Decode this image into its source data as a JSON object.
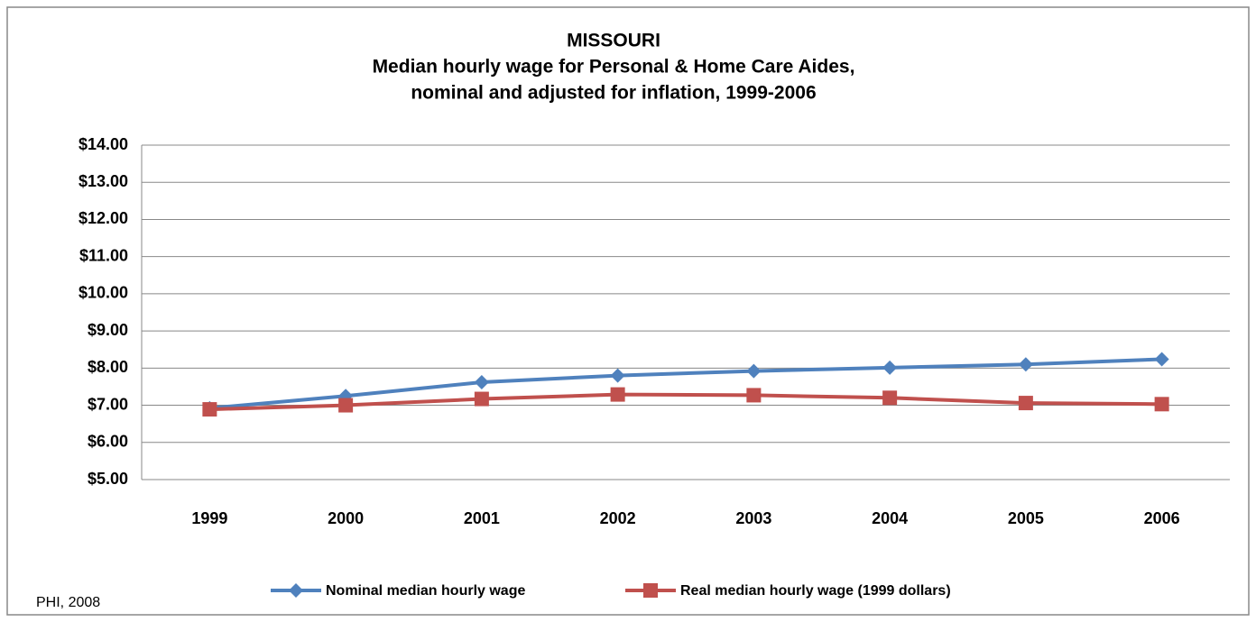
{
  "chart_data": {
    "type": "line",
    "title": [
      "MISSOURI",
      "Median hourly wage for Personal & Home Care Aides,",
      "nominal and adjusted for inflation, 1999-2006"
    ],
    "categories": [
      "1999",
      "2000",
      "2001",
      "2002",
      "2003",
      "2004",
      "2005",
      "2006"
    ],
    "series": [
      {
        "name": "Nominal median hourly wage",
        "color": "#4f81bd",
        "marker": "diamond",
        "values": [
          6.92,
          7.25,
          7.62,
          7.8,
          7.92,
          8.01,
          8.1,
          8.24
        ]
      },
      {
        "name": "Real median hourly wage (1999 dollars)",
        "color": "#c0504d",
        "marker": "square",
        "values": [
          6.89,
          7.0,
          7.17,
          7.29,
          7.27,
          7.2,
          7.06,
          7.03
        ]
      }
    ],
    "ylim": [
      5,
      14
    ],
    "yticks": [
      {
        "value": 5,
        "label": "$5.00"
      },
      {
        "value": 6,
        "label": "$6.00"
      },
      {
        "value": 7,
        "label": "$7.00"
      },
      {
        "value": 8,
        "label": "$8.00"
      },
      {
        "value": 9,
        "label": "$9.00"
      },
      {
        "value": 10,
        "label": "$10.00"
      },
      {
        "value": 11,
        "label": "$11.00"
      },
      {
        "value": 12,
        "label": "$12.00"
      },
      {
        "value": 13,
        "label": "$13.00"
      },
      {
        "value": 14,
        "label": "$14.00"
      }
    ],
    "grid": true,
    "legend": "bottom",
    "source": "PHI, 2008"
  }
}
